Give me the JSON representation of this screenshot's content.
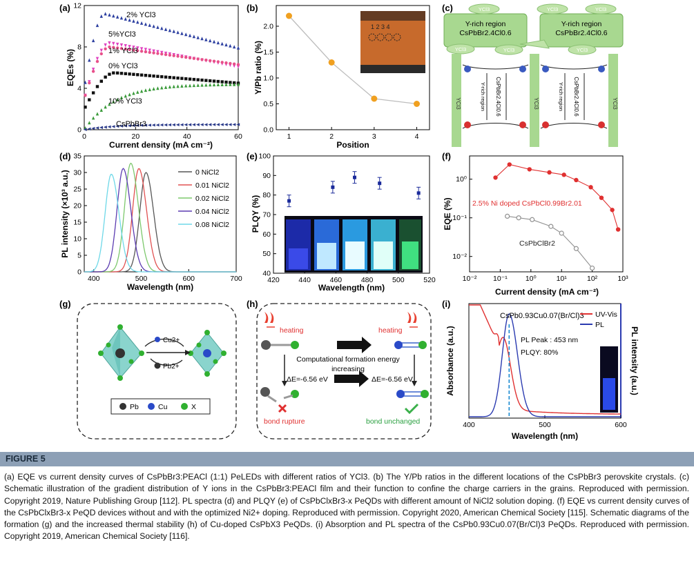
{
  "figure_label": "FIGURE 5",
  "caption": "(a) EQE vs current density curves of CsPbBr3:PEACl (1:1) PeLEDs with different ratios of YCl3. (b) The Y/Pb ratios in the different locations of the CsPbBr3 perovskite crystals. (c) Schematic illustration of the gradient distribution of Y ions in the CsPbBr3:PEACl film and their function to confine the charge carriers in the grains. Reproduced with permission. Copyright 2019, Nature Publishing Group [112]. PL spectra (d) and PLQY (e) of CsPbClxBr3-x PeQDs with different amount of NiCl2 solution doping. (f) EQE vs current density curves of the CsPbClxBr3-x PeQD devices without and with the optimized Ni2+ doping. Reproduced with permission. Copyright 2020, American Chemical Society [115]. Schematic diagrams of the formation (g) and the increased thermal stability (h) of Cu-doped CsPbX3 PeQDs. (i) Absorption and PL spectra of the CsPb0.93Cu0.07(Br/Cl)3 PeQDs. Reproduced with permission. Copyright 2019, American Chemical Society [116].",
  "colors": {
    "orange": "#f0a020",
    "blue": "#2c3fa0",
    "magenta": "#e040c0",
    "pink": "#e8508a",
    "black": "#111111",
    "green": "#3a9a3a",
    "navy": "#2a3a8a",
    "red": "#e03030",
    "gray": "#909090",
    "cyan": "#6ed8e8",
    "purple": "#5a3ab0",
    "light_green": "#a8d890",
    "header": "#8da0b6"
  },
  "panels": {
    "a": {
      "letter": "(a)",
      "chart_data": {
        "type": "scatter",
        "xlabel": "Current density (mA cm⁻²)",
        "ylabel": "EQEs (%)",
        "xlim": [
          0,
          60
        ],
        "ylim": [
          0,
          12
        ],
        "xticks": [
          0,
          20,
          40,
          60
        ],
        "yticks": [
          0,
          4,
          8,
          12
        ],
        "series": [
          {
            "name": "2% YCl3",
            "color": "#2c3fa0",
            "marker": "triangle",
            "peak_x": 8,
            "peak_y": 11.2,
            "end_y": 7.9,
            "start_y": 4
          },
          {
            "name": "5%YCl3",
            "color": "#e040c0",
            "marker": "triangle-down",
            "peak_x": 10,
            "peak_y": 8.4,
            "end_y": 6.1,
            "start_y": 3
          },
          {
            "name": "1% YCl3",
            "color": "#e8508a",
            "marker": "circle",
            "peak_x": 10,
            "peak_y": 8.0,
            "end_y": 6.3,
            "start_y": 3
          },
          {
            "name": "0% YCl3",
            "color": "#111111",
            "marker": "square",
            "peak_x": 12,
            "peak_y": 5.5,
            "end_y": 4.5,
            "start_y": 2
          },
          {
            "name": "10% YCl3",
            "color": "#3a9a3a",
            "marker": "triangle",
            "peak_x": 60,
            "peak_y": 4.4,
            "end_y": 4.4,
            "start_y": 0
          },
          {
            "name": "CsPbBr3",
            "color": "#2a3a8a",
            "marker": "triangle-left",
            "peak_x": 60,
            "peak_y": 0.5,
            "end_y": 0.5,
            "start_y": 0
          }
        ]
      }
    },
    "b": {
      "letter": "(b)",
      "chart_data": {
        "type": "line",
        "xlabel": "Position",
        "ylabel": "Y/Pb ratio (%)",
        "x": [
          1,
          2,
          3,
          4
        ],
        "values": [
          2.2,
          1.3,
          0.6,
          0.5
        ],
        "xlim": [
          0.7,
          4.3
        ],
        "ylim": [
          0,
          2.4
        ],
        "xticks": [
          1,
          2,
          3,
          4
        ],
        "yticks": [
          0.0,
          0.5,
          1.0,
          1.5,
          2.0
        ],
        "inset_labels": "1 2 3 4"
      }
    },
    "c": {
      "letter": "(c)",
      "ycl3": "YCl3",
      "region_line1": "Y-rich region",
      "region_line2": "CsPbBr2.4Cl0.6",
      "grain_label": "CsPbBr2.4Cl0.6",
      "rich_label": "Y-rich region"
    },
    "d": {
      "letter": "(d)",
      "chart_data": {
        "type": "line",
        "xlabel": "Wavelength (nm)",
        "ylabel": "PL intensity (×10³ a.u.)",
        "xlim": [
          380,
          700
        ],
        "ylim": [
          0,
          35
        ],
        "xticks": [
          400,
          500,
          600,
          700
        ],
        "yticks": [
          0,
          5,
          10,
          15,
          20,
          25,
          30,
          35
        ],
        "series": [
          {
            "name": "0 NiCl2",
            "color": "#555555",
            "peak_x": 510,
            "peak_y": 30.0
          },
          {
            "name": "0.01 NiCl2",
            "color": "#e05050",
            "peak_x": 495,
            "peak_y": 31.2
          },
          {
            "name": "0.02 NiCl2",
            "color": "#7cc86c",
            "peak_x": 478,
            "peak_y": 32.8
          },
          {
            "name": "0.04 NiCl2",
            "color": "#5a3ab0",
            "peak_x": 462,
            "peak_y": 31.2
          },
          {
            "name": "0.08 NiCl2",
            "color": "#6ed8e8",
            "peak_x": 437,
            "peak_y": 29.5
          }
        ]
      }
    },
    "e": {
      "letter": "(e)",
      "chart_data": {
        "type": "scatter",
        "xlabel": "Wavelength (nm)",
        "ylabel": "PLQY (%)",
        "x": [
          430,
          458,
          472,
          488,
          513
        ],
        "values": [
          77,
          84,
          89,
          86,
          81
        ],
        "errors": [
          3,
          3,
          3,
          3,
          3
        ],
        "xlim": [
          420,
          520
        ],
        "ylim": [
          40,
          100
        ],
        "xticks": [
          420,
          440,
          460,
          480,
          500,
          520
        ],
        "yticks": [
          40,
          50,
          60,
          70,
          80,
          90,
          100
        ]
      }
    },
    "f": {
      "letter": "(f)",
      "chart_data": {
        "type": "line",
        "xlabel": "Current density (mA cm⁻²)",
        "ylabel": "EQE (%)",
        "log_x": true,
        "log_y": true,
        "xlim": [
          0.01,
          1000
        ],
        "ylim": [
          0.004,
          4
        ],
        "xtick_labels": [
          "10⁻²",
          "10⁻¹",
          "10⁰",
          "10¹",
          "10²",
          "10³"
        ],
        "ytick_labels": [
          "10⁻²",
          "10⁻¹",
          "10⁰"
        ],
        "series": [
          {
            "name": "2.5% Ni doped CsPbCl0.99Br2.01",
            "color": "#e03030",
            "x": [
              0.07,
              0.2,
              0.9,
              4,
              12,
              30,
              90,
              200,
              450,
              700
            ],
            "values": [
              1.1,
              2.4,
              1.8,
              1.5,
              1.3,
              0.95,
              0.62,
              0.33,
              0.16,
              0.05
            ]
          },
          {
            "name": "CsPbClBr2",
            "color": "#909090",
            "x": [
              0.17,
              0.4,
              1.1,
              4.5,
              10,
              30,
              100
            ],
            "values": [
              0.11,
              0.1,
              0.09,
              0.06,
              0.04,
              0.016,
              0.005
            ]
          }
        ]
      }
    },
    "g": {
      "letter": "(g)",
      "cu": "Cu2+",
      "pb": "Pb2+",
      "legend": [
        "Pb",
        "Cu",
        "X"
      ]
    },
    "h": {
      "letter": "(h)",
      "heating": "heating",
      "computational": "Computational formation energy",
      "increasing": "increasing",
      "de": "ΔE=-6.56 eV",
      "rupture": "bond rupture",
      "unchanged": "bond unchanged"
    },
    "i": {
      "letter": "(i)",
      "chart_data": {
        "type": "line",
        "xlabel": "Wavelength (nm)",
        "ylabel": "Absorbance (a.u.)",
        "ylabel_right": "PL intensity (a.u.)",
        "xlim": [
          400,
          600
        ],
        "xticks": [
          400,
          500,
          600
        ],
        "series": [
          {
            "name": "UV-Vis",
            "color": "#e03030"
          },
          {
            "name": "PL",
            "color": "#2a3ab0"
          }
        ],
        "title": "CsPb0.93Cu0.07(Br/Cl)3",
        "annotation_peak": "PL Peak : 453 nm",
        "annotation_plqy": "PLQY: 80%"
      }
    }
  }
}
